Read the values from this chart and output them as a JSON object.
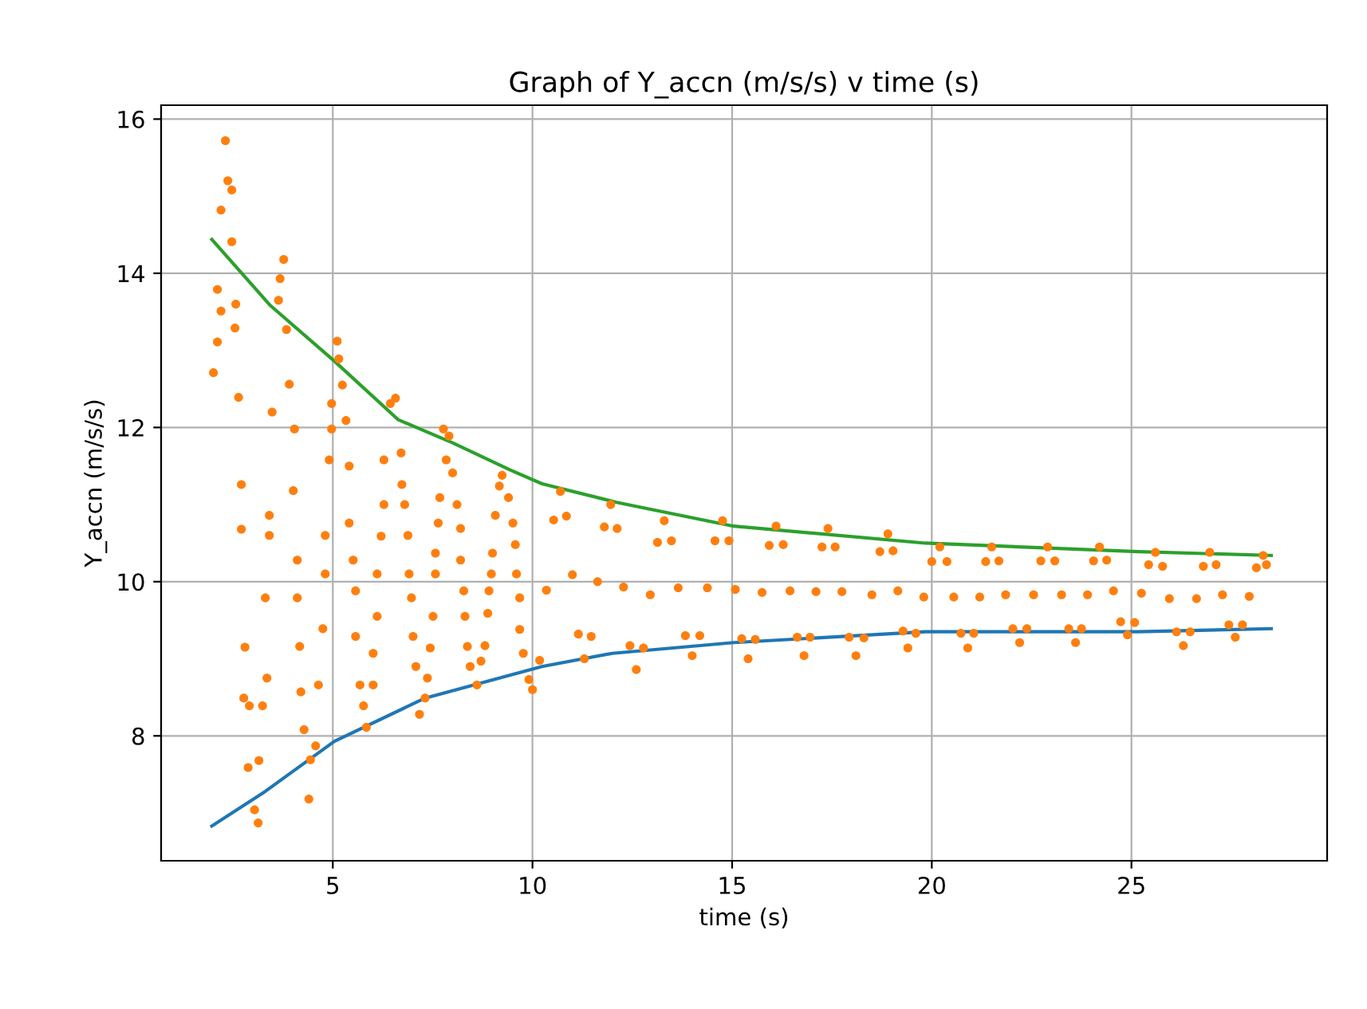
{
  "chart_data": {
    "type": "scatter",
    "title": "Graph of Y_accn (m/s/s) v time (s)",
    "xlabel": "time (s)",
    "ylabel": "Y_accn (m/s/s)",
    "xlim": [
      0.7,
      29.9
    ],
    "ylim": [
      6.38,
      16.18
    ],
    "xticks": [
      5,
      10,
      15,
      20,
      25
    ],
    "yticks": [
      8,
      10,
      12,
      14,
      16
    ],
    "grid": true,
    "series": [
      {
        "type": "line",
        "color": "#1f77b4",
        "x": [
          1.97,
          3.31,
          5.04,
          7.31,
          10.24,
          12.0,
          15.04,
          19.84,
          25.16,
          28.5
        ],
        "values": [
          6.83,
          7.28,
          7.93,
          8.49,
          8.9,
          9.07,
          9.21,
          9.35,
          9.35,
          9.39
        ]
      },
      {
        "color": "#ff7f0e",
        "marker": "circle",
        "x": [
          2.31,
          2.37,
          2.47,
          2.2,
          2.47,
          2.11,
          2.2,
          2.57,
          2.55,
          2.11,
          2.01,
          2.64,
          2.71,
          2.71,
          2.8,
          2.77,
          2.91,
          2.88,
          3.15,
          3.04,
          3.13,
          3.24,
          3.35,
          3.31,
          3.41,
          3.41,
          3.48,
          3.77,
          3.68,
          3.64,
          3.84,
          3.91,
          4.04,
          4.01,
          4.11,
          4.11,
          4.17,
          4.2,
          4.28,
          4.4,
          4.44,
          4.57,
          4.64,
          4.75,
          4.81,
          4.81,
          4.91,
          4.97,
          4.97,
          5.11,
          5.15,
          5.24,
          5.33,
          5.41,
          5.41,
          5.51,
          5.57,
          5.57,
          5.68,
          5.77,
          5.84,
          6.01,
          6.01,
          6.11,
          6.11,
          6.21,
          6.28,
          6.28,
          6.44,
          6.57,
          6.71,
          6.73,
          6.8,
          6.88,
          6.91,
          6.97,
          7.01,
          7.08,
          7.17,
          7.31,
          7.37,
          7.44,
          7.51,
          7.57,
          7.57,
          7.64,
          7.68,
          7.77,
          7.91,
          7.84,
          8.0,
          8.11,
          8.2,
          8.2,
          8.28,
          8.31,
          8.37,
          8.44,
          8.61,
          8.71,
          8.81,
          8.88,
          8.91,
          8.97,
          9.0,
          9.07,
          9.17,
          9.24,
          9.4,
          9.51,
          9.57,
          9.6,
          9.68,
          9.68,
          9.77,
          9.91,
          10.0,
          10.18,
          10.35,
          10.53,
          10.7,
          10.85,
          11.0,
          11.15,
          11.3,
          11.47,
          11.63,
          11.8,
          11.96,
          12.12,
          12.28,
          12.44,
          12.6,
          12.78,
          12.95,
          13.13,
          13.3,
          13.48,
          13.65,
          13.83,
          14.0,
          14.19,
          14.38,
          14.57,
          14.76,
          14.92,
          15.08,
          15.24,
          15.4,
          15.58,
          15.75,
          15.93,
          16.1,
          16.28,
          16.45,
          16.63,
          16.8,
          16.95,
          17.1,
          17.25,
          17.4,
          17.58,
          17.75,
          17.93,
          18.1,
          18.3,
          18.5,
          18.7,
          18.9,
          19.03,
          19.15,
          19.28,
          19.4,
          19.6,
          19.8,
          20.0,
          20.2,
          20.38,
          20.55,
          20.73,
          20.9,
          21.05,
          21.2,
          21.35,
          21.5,
          21.68,
          21.85,
          22.03,
          22.2,
          22.38,
          22.55,
          22.73,
          22.9,
          23.08,
          23.25,
          23.43,
          23.6,
          23.75,
          23.9,
          24.05,
          24.2,
          24.38,
          24.55,
          24.73,
          24.9,
          25.08,
          25.25,
          25.43,
          25.6,
          25.78,
          25.95,
          26.13,
          26.3,
          26.47,
          26.63,
          26.8,
          26.96,
          27.12,
          27.28,
          27.44,
          27.6,
          27.78,
          27.95,
          28.13,
          28.3,
          28.38
        ],
        "values": [
          15.72,
          15.2,
          15.08,
          14.82,
          14.41,
          13.79,
          13.51,
          13.6,
          13.29,
          13.11,
          12.71,
          12.39,
          11.26,
          10.68,
          9.15,
          8.49,
          8.39,
          7.59,
          7.68,
          7.04,
          6.87,
          8.39,
          8.75,
          9.79,
          10.6,
          10.86,
          12.2,
          14.18,
          13.93,
          13.65,
          13.27,
          12.56,
          11.98,
          11.18,
          10.28,
          9.79,
          9.16,
          8.57,
          8.08,
          7.18,
          7.69,
          7.87,
          8.66,
          9.39,
          10.1,
          10.6,
          11.58,
          11.98,
          12.31,
          13.12,
          12.89,
          12.55,
          12.09,
          11.5,
          10.76,
          10.28,
          9.88,
          9.29,
          8.66,
          8.39,
          8.11,
          8.66,
          9.07,
          9.55,
          10.1,
          10.59,
          11.0,
          11.58,
          12.31,
          12.38,
          11.67,
          11.26,
          11.0,
          10.6,
          10.1,
          9.79,
          9.29,
          8.9,
          8.28,
          8.49,
          8.75,
          9.14,
          9.55,
          10.1,
          10.37,
          10.76,
          11.09,
          11.98,
          11.89,
          11.58,
          11.41,
          11.0,
          10.69,
          10.28,
          9.88,
          9.55,
          9.16,
          8.9,
          8.66,
          8.97,
          9.17,
          9.59,
          9.88,
          10.1,
          10.37,
          10.86,
          11.24,
          11.38,
          11.09,
          10.76,
          10.48,
          10.1,
          9.79,
          9.38,
          9.07,
          8.73,
          8.6,
          8.98,
          9.89,
          10.8,
          11.17,
          10.85,
          10.09,
          9.32,
          9.0,
          9.29,
          10.0,
          10.71,
          11.0,
          10.69,
          9.93,
          9.17,
          8.86,
          9.14,
          9.83,
          10.51,
          10.79,
          10.53,
          9.92,
          9.3,
          9.04,
          9.3,
          9.92,
          10.53,
          10.79,
          10.53,
          9.9,
          9.26,
          9.0,
          9.25,
          9.86,
          10.47,
          10.72,
          10.48,
          9.88,
          9.28,
          9.04,
          9.28,
          9.87,
          10.45,
          10.69,
          10.45,
          9.87,
          9.28,
          9.04,
          9.27,
          9.83,
          10.39,
          10.62,
          10.4,
          9.88,
          9.36,
          9.14,
          9.33,
          9.8,
          10.26,
          10.45,
          10.26,
          9.8,
          9.33,
          9.14,
          9.33,
          9.8,
          10.26,
          10.45,
          10.27,
          9.83,
          9.39,
          9.21,
          9.39,
          9.83,
          10.27,
          10.45,
          10.27,
          9.83,
          9.39,
          9.21,
          9.39,
          9.83,
          10.27,
          10.45,
          10.28,
          9.88,
          9.48,
          9.31,
          9.47,
          9.85,
          10.22,
          10.38,
          10.2,
          9.78,
          9.35,
          9.17,
          9.35,
          9.78,
          10.2,
          10.38,
          10.22,
          9.83,
          9.44,
          9.28,
          9.44,
          9.81,
          10.18,
          10.34,
          10.22
        ]
      },
      {
        "type": "line",
        "color": "#2ca02c",
        "x": [
          1.97,
          3.44,
          5.04,
          6.64,
          8.0,
          9.44,
          10.24,
          12.1,
          15.04,
          19.84,
          25.16,
          28.5
        ],
        "values": [
          14.44,
          13.58,
          12.86,
          12.1,
          11.8,
          11.45,
          11.27,
          11.03,
          10.72,
          10.5,
          10.39,
          10.34
        ]
      }
    ]
  }
}
